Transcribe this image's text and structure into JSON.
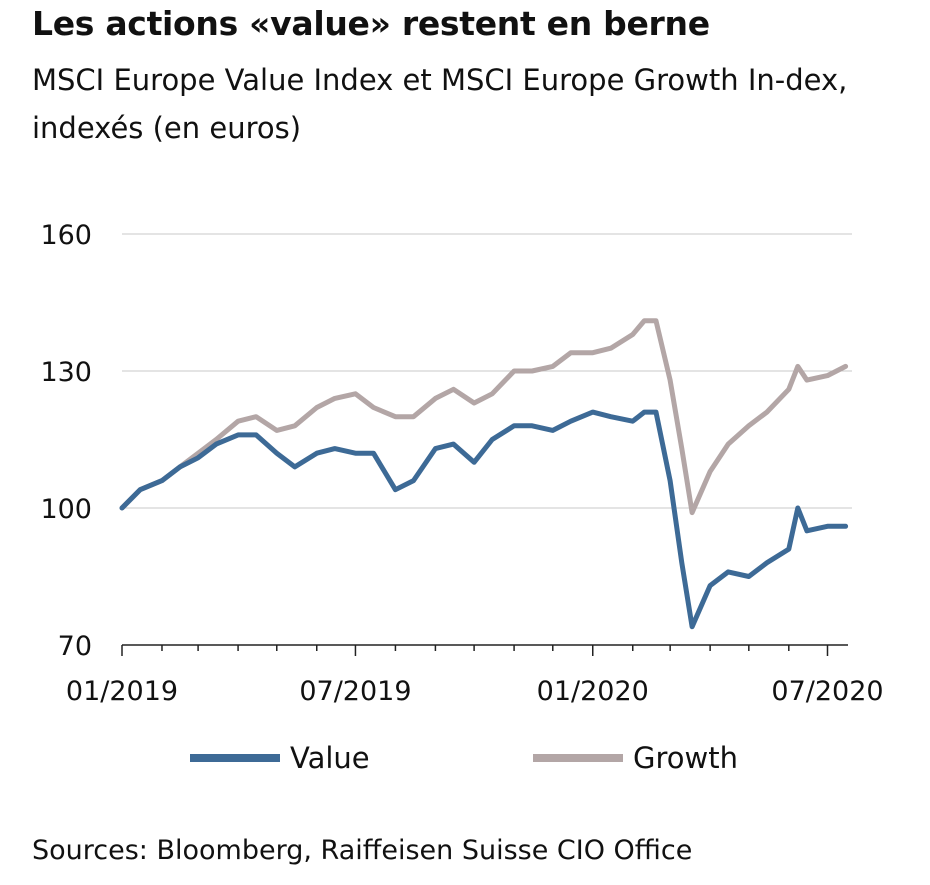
{
  "chart_data": {
    "type": "line",
    "title": "Les actions «value» restent en berne",
    "subtitle": "MSCI Europe Value Index et MSCI Europe Growth In-dex, indexés (en euros)",
    "xlabel": "",
    "ylabel": "",
    "x_tick_labels": [
      "01/2019",
      "07/2019",
      "01/2020",
      "07/2020"
    ],
    "y_tick_labels": [
      "160",
      "130",
      "100",
      "70"
    ],
    "ylim": [
      70,
      160
    ],
    "xlim": [
      "2019-01-01",
      "2020-07-20"
    ],
    "grid": "horizontal",
    "legend_position": "bottom",
    "x": [
      "2019-01-01",
      "2019-01-15",
      "2019-02-01",
      "2019-02-15",
      "2019-03-01",
      "2019-03-15",
      "2019-04-01",
      "2019-04-15",
      "2019-05-01",
      "2019-05-15",
      "2019-06-01",
      "2019-06-15",
      "2019-07-01",
      "2019-07-15",
      "2019-08-01",
      "2019-08-15",
      "2019-09-01",
      "2019-09-15",
      "2019-10-01",
      "2019-10-15",
      "2019-11-01",
      "2019-11-15",
      "2019-12-01",
      "2019-12-15",
      "2020-01-01",
      "2020-01-15",
      "2020-02-01",
      "2020-02-10",
      "2020-02-19",
      "2020-03-01",
      "2020-03-10",
      "2020-03-18",
      "2020-04-01",
      "2020-04-15",
      "2020-05-01",
      "2020-05-15",
      "2020-06-01",
      "2020-06-08",
      "2020-06-15",
      "2020-07-01",
      "2020-07-15"
    ],
    "series": [
      {
        "name": "Value",
        "color": "#3d6a96",
        "values": [
          100,
          104,
          106,
          109,
          111,
          114,
          116,
          116,
          112,
          109,
          112,
          113,
          112,
          112,
          104,
          106,
          113,
          114,
          110,
          115,
          118,
          118,
          117,
          119,
          121,
          120,
          119,
          121,
          121,
          106,
          88,
          74,
          83,
          86,
          85,
          88,
          91,
          100,
          95,
          96,
          96
        ]
      },
      {
        "name": "Growth",
        "color": "#b3a6a6",
        "values": [
          100,
          104,
          106,
          109,
          112,
          115,
          119,
          120,
          117,
          118,
          122,
          124,
          125,
          122,
          120,
          120,
          124,
          126,
          123,
          125,
          130,
          130,
          131,
          134,
          134,
          135,
          138,
          141,
          141,
          128,
          113,
          99,
          108,
          114,
          118,
          121,
          126,
          131,
          128,
          129,
          131
        ]
      }
    ]
  },
  "source": "Sources: Bloomberg, Raiffeisen Suisse CIO Office"
}
